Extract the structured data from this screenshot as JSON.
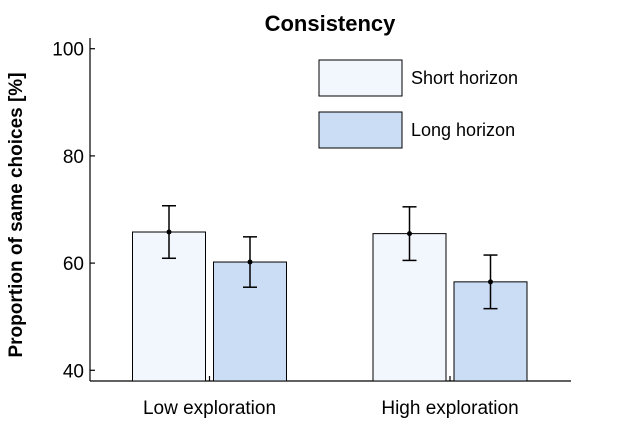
{
  "chart_data": {
    "type": "bar",
    "title": "Consistency",
    "ylabel": "Proportion of same choices [%]",
    "xlabel": "",
    "ylim": [
      38,
      102
    ],
    "yticks": [
      40,
      60,
      80,
      100
    ],
    "yticklabels": [
      "40",
      "60",
      "80",
      "100"
    ],
    "categories": [
      "Low exploration",
      "High exploration"
    ],
    "series": [
      {
        "name": "Short horizon",
        "values": [
          65.8,
          65.5
        ],
        "err": [
          4.9,
          5.0
        ],
        "color": "#f2f6fd"
      },
      {
        "name": "Long horizon",
        "values": [
          60.2,
          56.5
        ],
        "err": [
          4.7,
          5.0
        ],
        "color": "#cbdcf5"
      }
    ],
    "legend_position": "top-right",
    "grid": false
  }
}
